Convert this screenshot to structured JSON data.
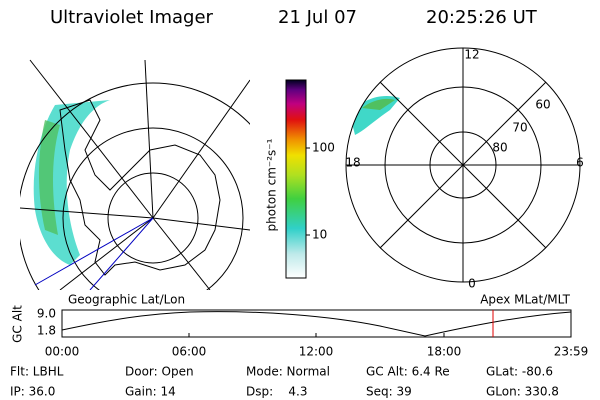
{
  "header": {
    "title": "Ultraviolet Imager",
    "date": "21 Jul 07",
    "time": "20:25:26 UT"
  },
  "colorbar": {
    "label": "photon cm⁻²s⁻¹",
    "ticks": [
      "100",
      "10"
    ]
  },
  "polar_plot": {
    "mlt_labels": [
      "12",
      "18",
      "6",
      "0"
    ],
    "lat_labels": [
      "60",
      "70",
      "80"
    ]
  },
  "captions": {
    "left": "Geographic Lat/Lon",
    "right": "Apex MLat/MLT"
  },
  "altitude_plot": {
    "ylabel": "GC Alt",
    "yticks": [
      "9.0",
      "1.8"
    ],
    "xticks": [
      "00:00",
      "06:00",
      "12:00",
      "18:00",
      "23:59"
    ]
  },
  "footer": {
    "rows": [
      [
        "Flt: LBHL",
        "Door: Open",
        "Mode: Normal",
        "GC Alt: 6.4 Re",
        "GLat: -80.6"
      ],
      [
        "IP: 36.0",
        "Gain: 14",
        "Dsp:    4.3",
        "Seq: 39",
        "GLon: 330.8"
      ]
    ]
  }
}
